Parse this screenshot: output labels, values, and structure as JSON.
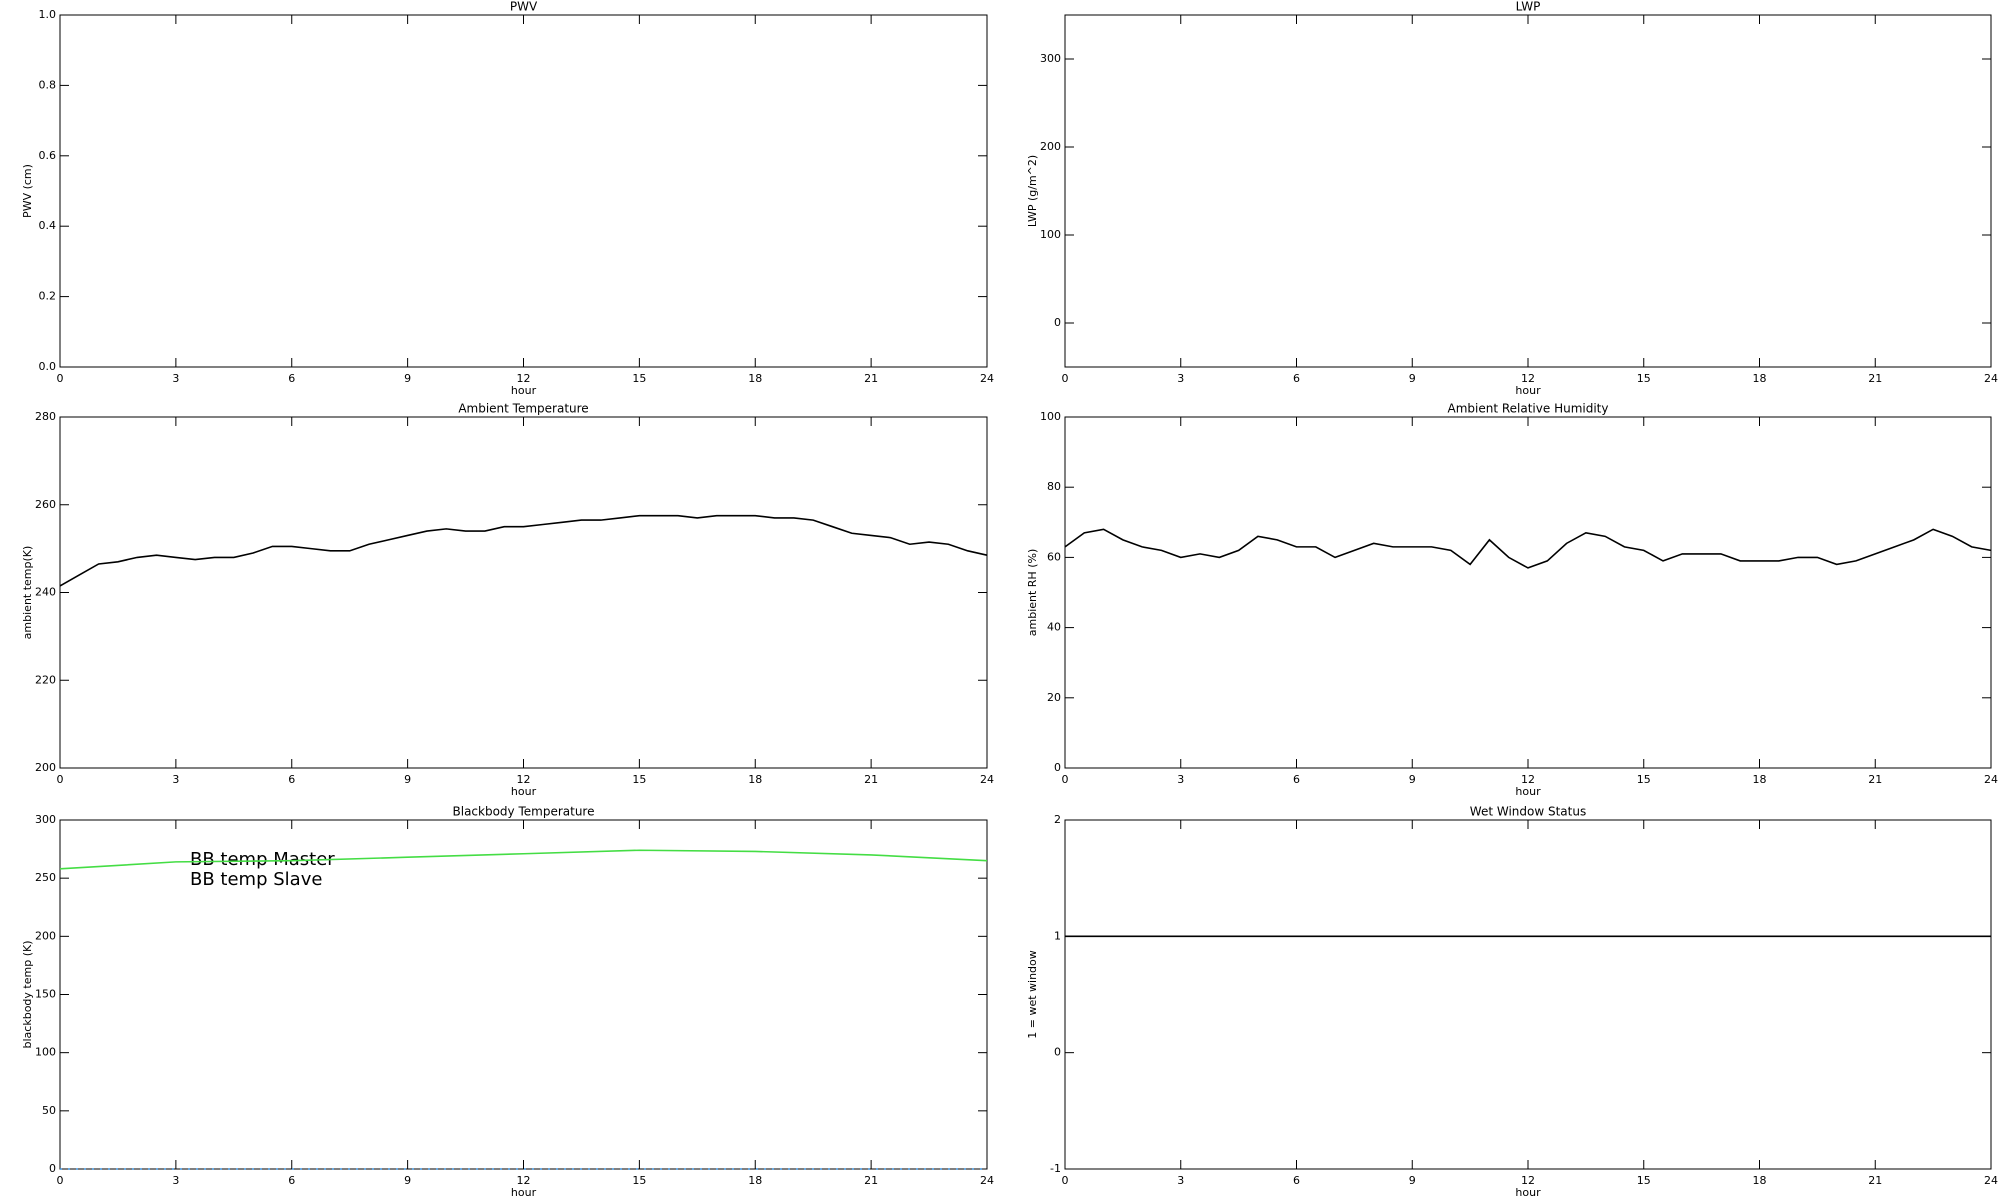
{
  "chart_data": [
    {
      "type": "line",
      "title": "PWV",
      "xlabel": "hour",
      "ylabel": "PWV (cm)",
      "xlim": [
        0,
        24
      ],
      "xticks": [
        0,
        3,
        6,
        9,
        12,
        15,
        18,
        21,
        24
      ],
      "ylim": [
        0,
        1
      ],
      "yticks": [
        {
          "value": 0,
          "label": "0.0"
        },
        0.2,
        0.4,
        0.6,
        0.8,
        {
          "value": 1,
          "label": "1.0"
        }
      ],
      "series": []
    },
    {
      "type": "line",
      "title": "LWP",
      "xlabel": "hour",
      "ylabel": "LWP (g/m^2)",
      "xlim": [
        0,
        24
      ],
      "xticks": [
        0,
        3,
        6,
        9,
        12,
        15,
        18,
        21,
        24
      ],
      "ylim": [
        -50,
        350
      ],
      "yticks": [
        0,
        100,
        200,
        300
      ],
      "series": []
    },
    {
      "type": "line",
      "title": "Ambient Temperature",
      "xlabel": "hour",
      "ylabel": "ambient temp(K)",
      "xlim": [
        0,
        24
      ],
      "xticks": [
        0,
        3,
        6,
        9,
        12,
        15,
        18,
        21,
        24
      ],
      "ylim": [
        200,
        280
      ],
      "yticks": [
        200,
        220,
        240,
        260,
        280
      ],
      "x": [
        0,
        0.5,
        1,
        1.5,
        2,
        2.5,
        3,
        3.5,
        4,
        4.5,
        5,
        5.5,
        6,
        6.5,
        7,
        7.5,
        8,
        8.5,
        9,
        9.5,
        10,
        10.5,
        11,
        11.5,
        12,
        12.5,
        13,
        13.5,
        14,
        14.5,
        15,
        15.5,
        16,
        16.5,
        17,
        17.5,
        18,
        18.5,
        19,
        19.5,
        20,
        20.5,
        21,
        21.5,
        22,
        22.5,
        23,
        23.5,
        24
      ],
      "series": [
        {
          "color": "#000000",
          "values": [
            241.5,
            244,
            246.5,
            247,
            248,
            248.5,
            248,
            247.5,
            248,
            248,
            249,
            250.5,
            250.5,
            250,
            249.5,
            249.5,
            251,
            252,
            253,
            254,
            254.5,
            254,
            254,
            255,
            255,
            255.5,
            256,
            256.5,
            256.5,
            257,
            257.5,
            257.5,
            257.5,
            257,
            257.5,
            257.5,
            257.5,
            257,
            257,
            256.5,
            255,
            253.5,
            253,
            252.5,
            251,
            251.5,
            251,
            249.5,
            248.5
          ]
        }
      ]
    },
    {
      "type": "line",
      "title": "Ambient Relative Humidity",
      "xlabel": "hour",
      "ylabel": "ambient RH (%)",
      "xlim": [
        0,
        24
      ],
      "xticks": [
        0,
        3,
        6,
        9,
        12,
        15,
        18,
        21,
        24
      ],
      "ylim": [
        0,
        100
      ],
      "yticks": [
        0,
        20,
        40,
        60,
        80,
        100
      ],
      "x": [
        0,
        0.5,
        1,
        1.5,
        2,
        2.5,
        3,
        3.5,
        4,
        4.5,
        5,
        5.5,
        6,
        6.5,
        7,
        7.5,
        8,
        8.5,
        9,
        9.5,
        10,
        10.5,
        11,
        11.5,
        12,
        12.5,
        13,
        13.5,
        14,
        14.5,
        15,
        15.5,
        16,
        16.5,
        17,
        17.5,
        18,
        18.5,
        19,
        19.5,
        20,
        20.5,
        21,
        21.5,
        22,
        22.5,
        23,
        23.5,
        24
      ],
      "series": [
        {
          "color": "#000000",
          "values": [
            63,
            67,
            68,
            65,
            63,
            62,
            60,
            61,
            60,
            62,
            66,
            65,
            63,
            63,
            60,
            62,
            64,
            63,
            63,
            63,
            62,
            58,
            65,
            60,
            57,
            59,
            64,
            67,
            66,
            63,
            62,
            59,
            61,
            61,
            61,
            59,
            59,
            59,
            60,
            60,
            58,
            59,
            61,
            63,
            65,
            68,
            66,
            63,
            62
          ]
        }
      ]
    },
    {
      "type": "line",
      "title": "Blackbody Temperature",
      "xlabel": "hour",
      "ylabel": "blackbody temp (K)",
      "xlim": [
        0,
        24
      ],
      "xticks": [
        0,
        3,
        6,
        9,
        12,
        15,
        18,
        21,
        24
      ],
      "ylim": [
        0,
        300
      ],
      "yticks": [
        0,
        50,
        100,
        150,
        200,
        250,
        300
      ],
      "legend": "upper left",
      "x": [
        0,
        3,
        6,
        9,
        12,
        15,
        18,
        21,
        24
      ],
      "series": [
        {
          "name": "BB temp Master",
          "color": "#3b8fd9",
          "linestyle": "dotted",
          "values": [
            0,
            0,
            0,
            0,
            0,
            0,
            0,
            0,
            0
          ]
        },
        {
          "name": "BB temp Slave",
          "color": "#44dd44",
          "values": [
            258,
            264,
            265,
            268,
            271,
            274,
            273,
            270,
            265
          ]
        }
      ]
    },
    {
      "type": "line",
      "title": "Wet Window Status",
      "xlabel": "hour",
      "ylabel": "1 = wet window",
      "xlim": [
        0,
        24
      ],
      "xticks": [
        0,
        3,
        6,
        9,
        12,
        15,
        18,
        21,
        24
      ],
      "ylim": [
        -1,
        2
      ],
      "yticks": [
        -1,
        0,
        1,
        2
      ],
      "x": [
        0,
        24
      ],
      "series": [
        {
          "color": "#000000",
          "values": [
            1,
            1
          ]
        }
      ]
    }
  ]
}
